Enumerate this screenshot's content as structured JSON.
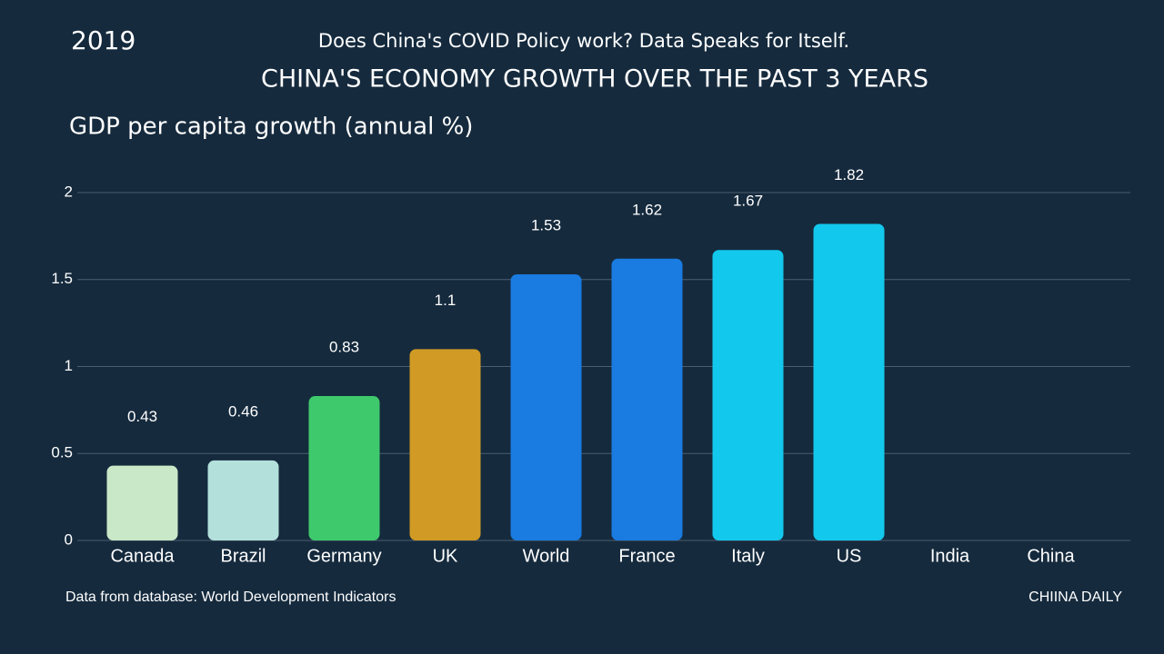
{
  "chart_data": {
    "type": "bar",
    "year": "2019",
    "subtitle": "Does China's COVID Policy work? Data Speaks for Itself.",
    "title": "CHINA'S ECONOMY GROWTH OVER THE PAST 3 YEARS",
    "y_label": "GDP per capita growth (annual %)",
    "categories": [
      "Canada",
      "Brazil",
      "Germany",
      "UK",
      "World",
      "France",
      "Italy",
      "US",
      "India",
      "China"
    ],
    "values": [
      0.43,
      0.46,
      0.83,
      1.1,
      1.53,
      1.62,
      1.67,
      1.82,
      null,
      null
    ],
    "colors": [
      "#c9e8c8",
      "#b4e0dc",
      "#3ec96c",
      "#d09a24",
      "#1a7be0",
      "#1a7be0",
      "#12c8ec",
      "#12c8ec",
      null,
      null
    ],
    "ylim": [
      0,
      2
    ],
    "yticks": [
      0,
      0.5,
      1,
      1.5,
      2
    ],
    "grid": true,
    "source": "Data from database: World Development Indicators",
    "credit": "CHIINA DAILY"
  }
}
